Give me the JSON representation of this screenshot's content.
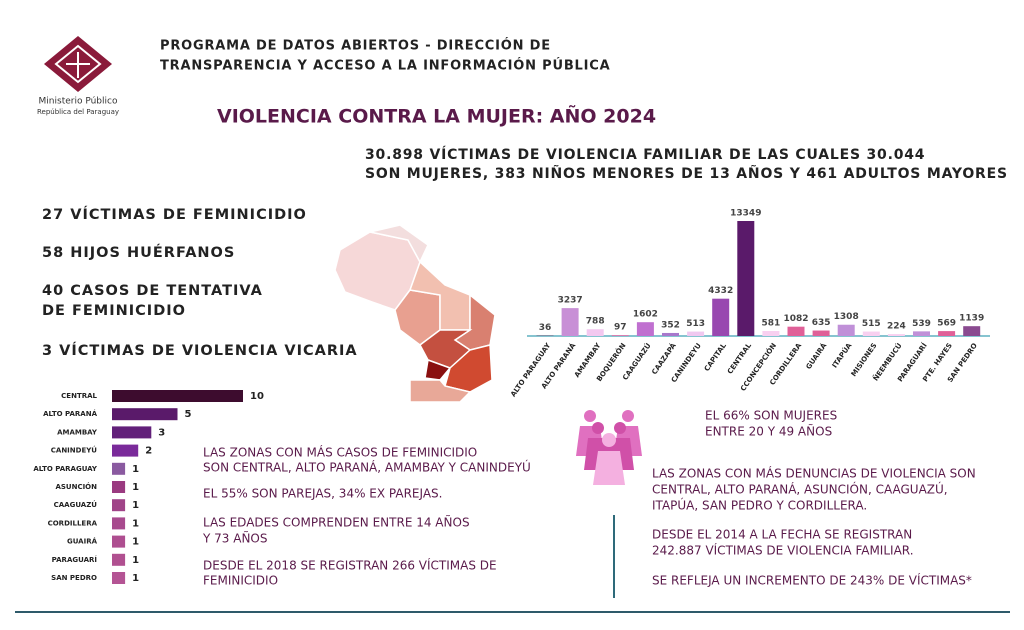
{
  "header": {
    "org_lines": [
      "Ministerio Público",
      "República del Paraguay"
    ],
    "program_lines": [
      "PROGRAMA DE DATOS ABIERTOS - DIRECCIÓN DE",
      "TRANSPARENCIA Y ACCESO A LA INFORMACIÓN PÚBLICA"
    ],
    "title": "VIOLENCIA CONTRA LA MUJER: AÑO 2024"
  },
  "summary_lines": [
    "30.898 VÍCTIMAS DE VIOLENCIA FAMILIAR DE LAS CUALES 30.044",
    "SON MUJERES, 383 NIÑOS MENORES DE 13 AÑOS Y 461 ADULTOS MAYORES"
  ],
  "stats": [
    [
      "27 VÍCTIMAS DE FEMINICIDIO"
    ],
    [
      "58 HIJOS HUÉRFANOS"
    ],
    [
      "40 CASOS DE TENTATIVA",
      "DE FEMINICIDIO"
    ],
    [
      "3 VÍCTIMAS DE VIOLENCIA VICARIA"
    ]
  ],
  "left_notes": [
    [
      "LAS ZONAS CON MÁS CASOS DE FEMINICIDIO",
      "SON CENTRAL, ALTO PARANÁ, AMAMBAY Y CANINDEYÚ"
    ],
    [
      "EL 55% SON PAREJAS, 34% EX PAREJAS."
    ],
    [
      "LAS EDADES COMPRENDEN ENTRE 14 AÑOS",
      "Y 73 AÑOS"
    ],
    [
      "DESDE EL 2018 SE REGISTRAN 266 VÍCTIMAS DE",
      "FEMINICIDIO"
    ]
  ],
  "right_notes": [
    [
      "EL 66% SON MUJERES",
      "ENTRE 20 Y 49 AÑOS"
    ],
    [
      "LAS ZONAS CON MÁS DENUNCIAS DE VIOLENCIA SON",
      "CENTRAL, ALTO PARANÁ, ASUNCIÓN, CAAGUAZÚ,",
      "ITAPÚA, SAN PEDRO Y CORDILLERA."
    ],
    [
      "DESDE EL 2014 A LA FECHA SE REGISTRAN",
      "242.887 VÍCTIMAS DE VIOLENCIA FAMILIAR."
    ],
    [
      "SE REFLEJA UN INCREMENTO DE 243% DE VÍCTIMAS*"
    ]
  ],
  "chart_data": [
    {
      "type": "bar",
      "categories": [
        "ALTO PARAGUAY",
        "ALTO PARANÁ",
        "AMAMBAY",
        "BOQUERÓN",
        "CAAGUAZÚ",
        "CAAZAPÁ",
        "CANINDEYU",
        "CAPITAL",
        "CENTRAL",
        "CCONCEPCIÓN",
        "CORDILLERA",
        "GUAIRÁ",
        "ITAPÚA",
        "MISIONES",
        "ÑEEMBUCÚ",
        "PARAGUARÍ",
        "PTE. HAYES",
        "SAN PEDRO"
      ],
      "values": [
        36,
        3237,
        788,
        97,
        1602,
        352,
        513,
        4332,
        13349,
        581,
        1082,
        635,
        1308,
        515,
        224,
        539,
        569,
        1139
      ],
      "colors": [
        "#5a1a4a",
        "#c88fd6",
        "#f3c8f0",
        "#e070a8",
        "#c070d0",
        "#a878cc",
        "#f0c8f0",
        "#9848b0",
        "#5a1a6a",
        "#f8d0f0",
        "#e06098",
        "#e06098",
        "#c090d8",
        "#f8d0f0",
        "#f8d0f0",
        "#c090d8",
        "#e06098",
        "#8a4a90"
      ]
    },
    {
      "type": "hbar",
      "categories": [
        "CENTRAL",
        "ALTO PARANÁ",
        "AMAMBAY",
        "CANINDEYÚ",
        "ALTO PARAGUAY",
        "ASUNCIÓN",
        "CAAGUAZÚ",
        "CORDILLERA",
        "GUAIRÁ",
        "PARAGUARÍ",
        "SAN PEDRO"
      ],
      "values": [
        10,
        5,
        3,
        2,
        1,
        1,
        1,
        1,
        1,
        1,
        1
      ],
      "colors": [
        "#3d0c2e",
        "#5a1a6a",
        "#62207a",
        "#7a2a9a",
        "#8a5aa0",
        "#9a3a80",
        "#a04488",
        "#a84a8e",
        "#ae4e90",
        "#b05090",
        "#b45494"
      ]
    }
  ]
}
